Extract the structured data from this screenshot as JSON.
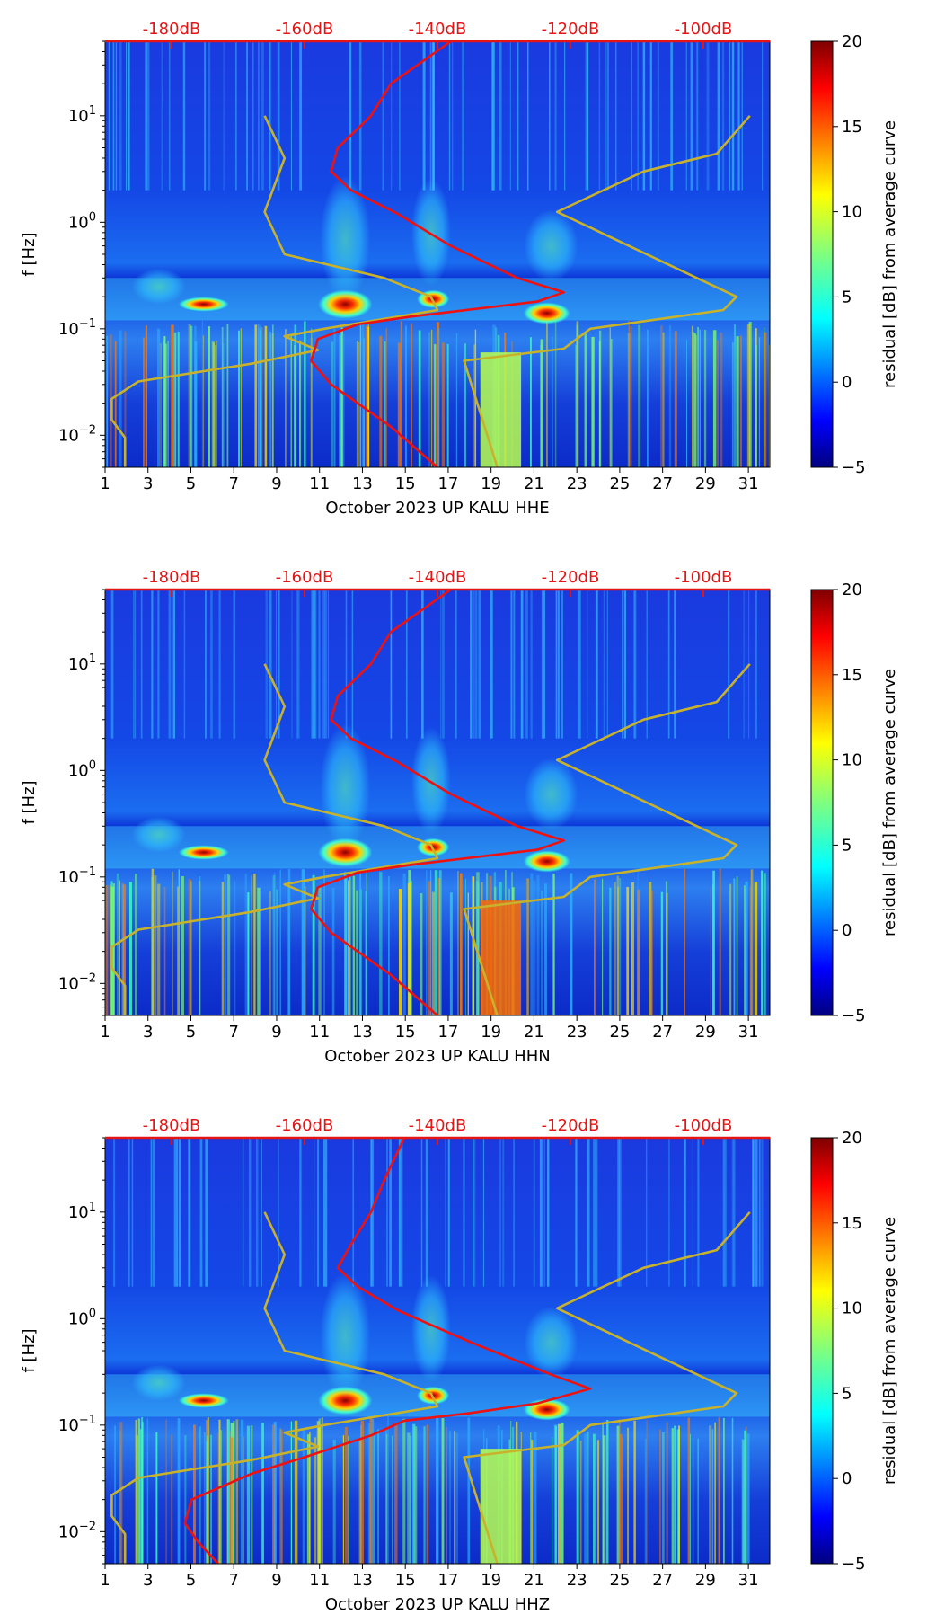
{
  "chart_data": [
    {
      "type": "heatmap",
      "panel": "HHE",
      "xlabel": "October 2023 UP KALU  HHE",
      "ylabel": "f [Hz]",
      "x_ticks": [
        "1",
        "3",
        "5",
        "7",
        "9",
        "11",
        "13",
        "15",
        "17",
        "19",
        "21",
        "23",
        "25",
        "27",
        "29",
        "31"
      ],
      "x_range": [
        1,
        32
      ],
      "y_scale": "log",
      "y_range": [
        0.005,
        50
      ],
      "y_ticks": [
        {
          "exp": "-2",
          "value": 0.01
        },
        {
          "exp": "-1",
          "value": 0.1
        },
        {
          "exp": "0",
          "value": 1
        },
        {
          "exp": "1",
          "value": 10
        }
      ],
      "top_axis_ticks": [
        "-180dB",
        "-160dB",
        "-140dB",
        "-120dB",
        "-100dB"
      ],
      "top_axis_range": [
        -190,
        -90
      ],
      "colorbar": {
        "label": "residual [dB] from average curve",
        "ticks": [
          "20",
          "15",
          "10",
          "5",
          "0",
          "−5"
        ],
        "range": [
          -5,
          20
        ]
      },
      "grid": false,
      "noise_models": {
        "low": [
          {
            "db": -187,
            "f": 0.005
          },
          {
            "db": -187,
            "f": 0.0095
          },
          {
            "db": -189,
            "f": 0.014
          },
          {
            "db": -189,
            "f": 0.022
          },
          {
            "db": -185,
            "f": 0.032
          },
          {
            "db": -168,
            "f": 0.047
          },
          {
            "db": -158,
            "f": 0.063
          },
          {
            "db": -163,
            "f": 0.085
          },
          {
            "db": -157,
            "f": 0.1
          },
          {
            "db": -140,
            "f": 0.15
          },
          {
            "db": -141,
            "f": 0.2
          },
          {
            "db": -148,
            "f": 0.3
          },
          {
            "db": -163,
            "f": 0.5
          },
          {
            "db": -166,
            "f": 1.25
          },
          {
            "db": -163,
            "f": 4
          },
          {
            "db": -166,
            "f": 10
          }
        ],
        "high": [
          {
            "db": -131,
            "f": 0.005
          },
          {
            "db": -136,
            "f": 0.05
          },
          {
            "db": -121,
            "f": 0.065
          },
          {
            "db": -117,
            "f": 0.1
          },
          {
            "db": -97,
            "f": 0.15
          },
          {
            "db": -95,
            "f": 0.2
          },
          {
            "db": -122,
            "f": 1.25
          },
          {
            "db": -109,
            "f": 3
          },
          {
            "db": -98,
            "f": 4.4
          },
          {
            "db": -93,
            "f": 10
          }
        ],
        "median": [
          {
            "db": -140,
            "f": 0.005
          },
          {
            "db": -147,
            "f": 0.012
          },
          {
            "db": -156,
            "f": 0.03
          },
          {
            "db": -159,
            "f": 0.05
          },
          {
            "db": -158,
            "f": 0.08
          },
          {
            "db": -152,
            "f": 0.11
          },
          {
            "db": -144,
            "f": 0.13
          },
          {
            "db": -125,
            "f": 0.18
          },
          {
            "db": -121,
            "f": 0.22
          },
          {
            "db": -128,
            "f": 0.3
          },
          {
            "db": -138,
            "f": 0.6
          },
          {
            "db": -146,
            "f": 1.2
          },
          {
            "db": -153,
            "f": 2
          },
          {
            "db": -156,
            "f": 3
          },
          {
            "db": -155,
            "f": 5
          },
          {
            "db": -150,
            "f": 10
          },
          {
            "db": -147,
            "f": 20
          },
          {
            "db": -138,
            "f": 50
          }
        ]
      }
    },
    {
      "type": "heatmap",
      "panel": "HHN",
      "xlabel": "October 2023 UP KALU  HHN",
      "ylabel": "f [Hz]",
      "x_ticks": [
        "1",
        "3",
        "5",
        "7",
        "9",
        "11",
        "13",
        "15",
        "17",
        "19",
        "21",
        "23",
        "25",
        "27",
        "29",
        "31"
      ],
      "x_range": [
        1,
        32
      ],
      "y_scale": "log",
      "y_range": [
        0.005,
        50
      ],
      "y_ticks": [
        {
          "exp": "-2",
          "value": 0.01
        },
        {
          "exp": "-1",
          "value": 0.1
        },
        {
          "exp": "0",
          "value": 1
        },
        {
          "exp": "1",
          "value": 10
        }
      ],
      "top_axis_ticks": [
        "-180dB",
        "-160dB",
        "-140dB",
        "-120dB",
        "-100dB"
      ],
      "top_axis_range": [
        -190,
        -90
      ],
      "colorbar": {
        "label": "residual [dB] from average curve",
        "ticks": [
          "20",
          "15",
          "10",
          "5",
          "0",
          "−5"
        ],
        "range": [
          -5,
          20
        ]
      },
      "grid": false,
      "noise_models": {
        "low": [
          {
            "db": -187,
            "f": 0.005
          },
          {
            "db": -187,
            "f": 0.0095
          },
          {
            "db": -189,
            "f": 0.014
          },
          {
            "db": -189,
            "f": 0.022
          },
          {
            "db": -185,
            "f": 0.032
          },
          {
            "db": -168,
            "f": 0.047
          },
          {
            "db": -158,
            "f": 0.063
          },
          {
            "db": -163,
            "f": 0.085
          },
          {
            "db": -157,
            "f": 0.1
          },
          {
            "db": -140,
            "f": 0.15
          },
          {
            "db": -141,
            "f": 0.2
          },
          {
            "db": -148,
            "f": 0.3
          },
          {
            "db": -163,
            "f": 0.5
          },
          {
            "db": -166,
            "f": 1.25
          },
          {
            "db": -163,
            "f": 4
          },
          {
            "db": -166,
            "f": 10
          }
        ],
        "high": [
          {
            "db": -131,
            "f": 0.005
          },
          {
            "db": -136,
            "f": 0.05
          },
          {
            "db": -121,
            "f": 0.065
          },
          {
            "db": -117,
            "f": 0.1
          },
          {
            "db": -97,
            "f": 0.15
          },
          {
            "db": -95,
            "f": 0.2
          },
          {
            "db": -122,
            "f": 1.25
          },
          {
            "db": -109,
            "f": 3
          },
          {
            "db": -98,
            "f": 4.4
          },
          {
            "db": -93,
            "f": 10
          }
        ],
        "median": [
          {
            "db": -140,
            "f": 0.005
          },
          {
            "db": -147,
            "f": 0.012
          },
          {
            "db": -156,
            "f": 0.03
          },
          {
            "db": -159,
            "f": 0.05
          },
          {
            "db": -158,
            "f": 0.08
          },
          {
            "db": -152,
            "f": 0.11
          },
          {
            "db": -144,
            "f": 0.13
          },
          {
            "db": -125,
            "f": 0.18
          },
          {
            "db": -121,
            "f": 0.22
          },
          {
            "db": -128,
            "f": 0.3
          },
          {
            "db": -138,
            "f": 0.6
          },
          {
            "db": -146,
            "f": 1.2
          },
          {
            "db": -153,
            "f": 2
          },
          {
            "db": -156,
            "f": 3
          },
          {
            "db": -155,
            "f": 5
          },
          {
            "db": -150,
            "f": 10
          },
          {
            "db": -147,
            "f": 20
          },
          {
            "db": -138,
            "f": 50
          }
        ]
      }
    },
    {
      "type": "heatmap",
      "panel": "HHZ",
      "xlabel": "October 2023 UP KALU  HHZ",
      "ylabel": "f [Hz]",
      "x_ticks": [
        "1",
        "3",
        "5",
        "7",
        "9",
        "11",
        "13",
        "15",
        "17",
        "19",
        "21",
        "23",
        "25",
        "27",
        "29",
        "31"
      ],
      "x_range": [
        1,
        32
      ],
      "y_scale": "log",
      "y_range": [
        0.005,
        50
      ],
      "y_ticks": [
        {
          "exp": "-2",
          "value": 0.01
        },
        {
          "exp": "-1",
          "value": 0.1
        },
        {
          "exp": "0",
          "value": 1
        },
        {
          "exp": "1",
          "value": 10
        }
      ],
      "top_axis_ticks": [
        "-180dB",
        "-160dB",
        "-140dB",
        "-120dB",
        "-100dB"
      ],
      "top_axis_range": [
        -190,
        -90
      ],
      "colorbar": {
        "label": "residual [dB] from average curve",
        "ticks": [
          "20",
          "15",
          "10",
          "5",
          "0",
          "−5"
        ],
        "range": [
          -5,
          20
        ]
      },
      "grid": false,
      "noise_models": {
        "low": [
          {
            "db": -187,
            "f": 0.005
          },
          {
            "db": -187,
            "f": 0.0095
          },
          {
            "db": -189,
            "f": 0.014
          },
          {
            "db": -189,
            "f": 0.022
          },
          {
            "db": -185,
            "f": 0.032
          },
          {
            "db": -168,
            "f": 0.047
          },
          {
            "db": -158,
            "f": 0.063
          },
          {
            "db": -163,
            "f": 0.085
          },
          {
            "db": -157,
            "f": 0.1
          },
          {
            "db": -140,
            "f": 0.15
          },
          {
            "db": -141,
            "f": 0.2
          },
          {
            "db": -148,
            "f": 0.3
          },
          {
            "db": -163,
            "f": 0.5
          },
          {
            "db": -166,
            "f": 1.25
          },
          {
            "db": -163,
            "f": 4
          },
          {
            "db": -166,
            "f": 10
          }
        ],
        "high": [
          {
            "db": -131,
            "f": 0.005
          },
          {
            "db": -136,
            "f": 0.05
          },
          {
            "db": -121,
            "f": 0.065
          },
          {
            "db": -117,
            "f": 0.1
          },
          {
            "db": -97,
            "f": 0.15
          },
          {
            "db": -95,
            "f": 0.2
          },
          {
            "db": -122,
            "f": 1.25
          },
          {
            "db": -109,
            "f": 3
          },
          {
            "db": -98,
            "f": 4.4
          },
          {
            "db": -93,
            "f": 10
          }
        ],
        "median": [
          {
            "db": -173,
            "f": 0.005
          },
          {
            "db": -176,
            "f": 0.008
          },
          {
            "db": -178,
            "f": 0.012
          },
          {
            "db": -177,
            "f": 0.02
          },
          {
            "db": -168,
            "f": 0.035
          },
          {
            "db": -160,
            "f": 0.05
          },
          {
            "db": -150,
            "f": 0.08
          },
          {
            "db": -145,
            "f": 0.11
          },
          {
            "db": -135,
            "f": 0.13
          },
          {
            "db": -125,
            "f": 0.16
          },
          {
            "db": -117,
            "f": 0.22
          },
          {
            "db": -123,
            "f": 0.3
          },
          {
            "db": -135,
            "f": 0.6
          },
          {
            "db": -146,
            "f": 1.2
          },
          {
            "db": -152,
            "f": 2
          },
          {
            "db": -155,
            "f": 3
          },
          {
            "db": -153,
            "f": 5
          },
          {
            "db": -150,
            "f": 10
          },
          {
            "db": -148,
            "f": 20
          },
          {
            "db": -145,
            "f": 50
          }
        ]
      }
    }
  ],
  "colors": {
    "median_curve": "#ee1111",
    "noise_model": "#c8b22c",
    "top_axis": "#e51515",
    "axis_text": "#000000"
  }
}
